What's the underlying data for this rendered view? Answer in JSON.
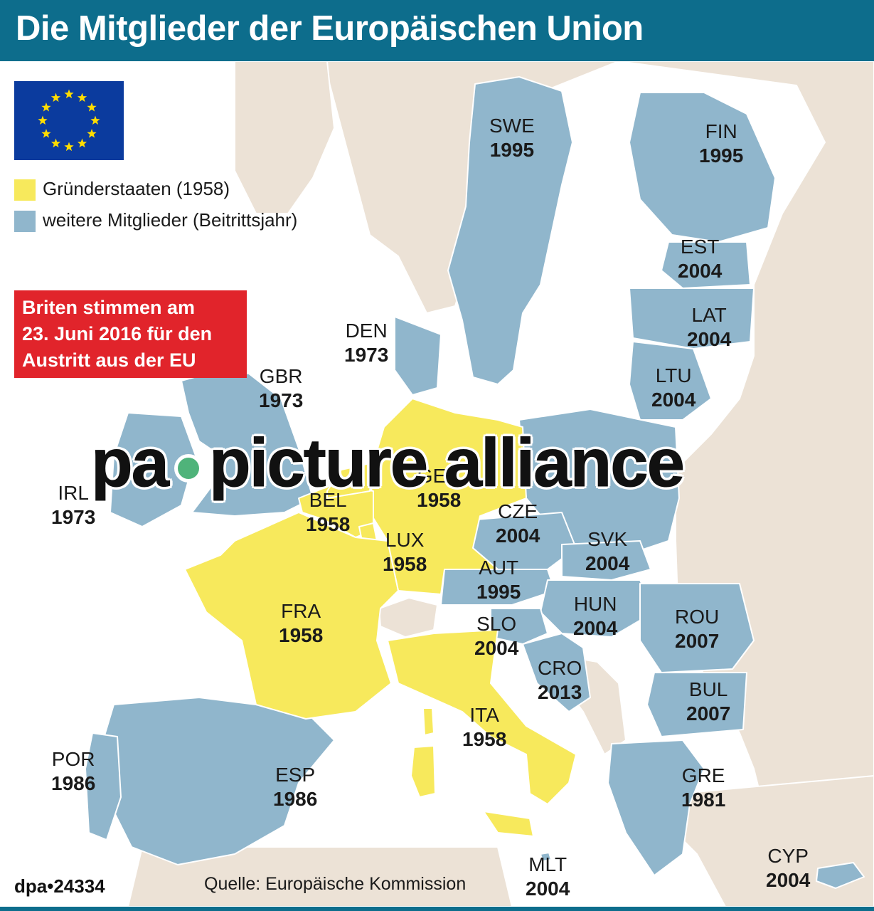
{
  "title": "Die Mitglieder der Europäischen Union",
  "colors": {
    "header": "#0d6d8c",
    "founder": "#f7e95c",
    "member": "#90b6cc",
    "non_member": "#ece2d6",
    "sea": "#ffffff",
    "brexit_box": "#e1242b",
    "flag_blue": "#0b3b9e",
    "flag_star": "#ffdd00"
  },
  "legend": {
    "founders": "Gründerstaaten (1958)",
    "members": "weitere Mitglieder (Beitrittsjahr)"
  },
  "brexit_note": [
    "Briten stimmen am",
    "23. Juni 2016 für den",
    "Austritt aus der EU"
  ],
  "countries": [
    {
      "code": "SWE",
      "year": "1995",
      "status": "member"
    },
    {
      "code": "FIN",
      "year": "1995",
      "status": "member"
    },
    {
      "code": "EST",
      "year": "2004",
      "status": "member"
    },
    {
      "code": "LAT",
      "year": "2004",
      "status": "member"
    },
    {
      "code": "LTU",
      "year": "2004",
      "status": "member"
    },
    {
      "code": "DEN",
      "year": "1973",
      "status": "member"
    },
    {
      "code": "GBR",
      "year": "1973",
      "status": "member"
    },
    {
      "code": "IRL",
      "year": "1973",
      "status": "member"
    },
    {
      "code": "GER",
      "year": "1958",
      "status": "founder"
    },
    {
      "code": "BEL",
      "year": "1958",
      "status": "founder"
    },
    {
      "code": "LUX",
      "year": "1958",
      "status": "founder"
    },
    {
      "code": "CZE",
      "year": "2004",
      "status": "member"
    },
    {
      "code": "SVK",
      "year": "2004",
      "status": "member"
    },
    {
      "code": "AUT",
      "year": "1995",
      "status": "member"
    },
    {
      "code": "FRA",
      "year": "1958",
      "status": "founder"
    },
    {
      "code": "HUN",
      "year": "2004",
      "status": "member"
    },
    {
      "code": "ROU",
      "year": "2007",
      "status": "member"
    },
    {
      "code": "SLO",
      "year": "2004",
      "status": "member"
    },
    {
      "code": "CRO",
      "year": "2013",
      "status": "member"
    },
    {
      "code": "BUL",
      "year": "2007",
      "status": "member"
    },
    {
      "code": "ITA",
      "year": "1958",
      "status": "founder"
    },
    {
      "code": "POR",
      "year": "1986",
      "status": "member"
    },
    {
      "code": "ESP",
      "year": "1986",
      "status": "member"
    },
    {
      "code": "GRE",
      "year": "1981",
      "status": "member"
    },
    {
      "code": "CYP",
      "year": "2004",
      "status": "member"
    },
    {
      "code": "MLT",
      "year": "2004",
      "status": "member"
    }
  ],
  "watermark": {
    "left": "pa",
    "right": "picture alliance"
  },
  "footer": {
    "id": "dpa•24334",
    "source": "Quelle: Europäische Kommission"
  }
}
